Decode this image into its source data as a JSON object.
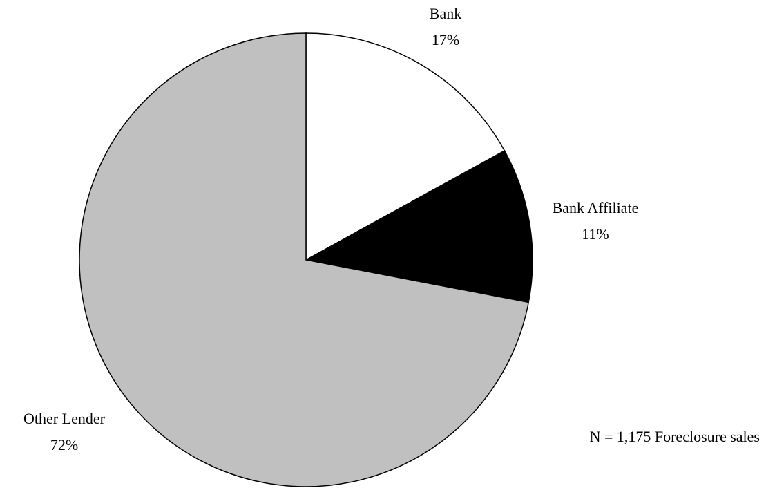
{
  "chart_data": {
    "type": "pie",
    "categories": [
      "Bank",
      "Bank Affiliate",
      "Other Lender"
    ],
    "values": [
      17,
      11,
      72
    ],
    "value_labels": [
      "17%",
      "11%",
      "72%"
    ],
    "colors": [
      "#ffffff",
      "#000000",
      "#c0c0c0"
    ],
    "annotation": "N = 1,175 Foreclosure sales"
  }
}
